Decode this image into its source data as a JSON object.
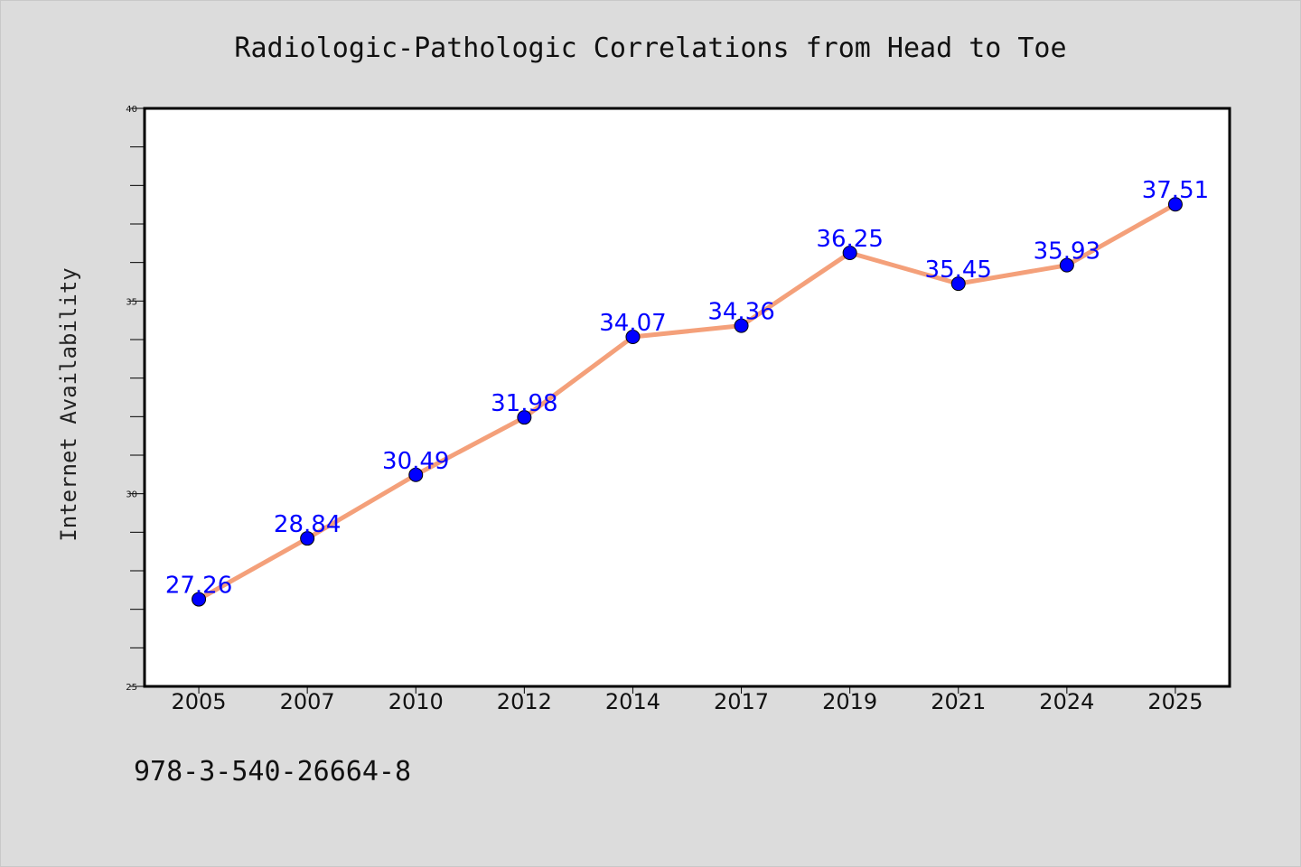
{
  "chart_data": {
    "type": "line",
    "title": "Radiologic-Pathologic Correlations from Head to Toe",
    "ylabel": "Internet Availability",
    "xlabel": "",
    "categories": [
      "2005",
      "2007",
      "2010",
      "2012",
      "2014",
      "2017",
      "2019",
      "2021",
      "2024",
      "2025"
    ],
    "series": [
      {
        "values": [
          27.26,
          28.84,
          30.49,
          31.98,
          34.07,
          34.36,
          36.25,
          35.45,
          35.93,
          37.51
        ],
        "labels": [
          "27.26",
          "28.84",
          "30.49",
          "31.98",
          "34.07",
          "34.36",
          "36.25",
          "35.45",
          "35.93",
          "37.51"
        ]
      }
    ],
    "ylim": [
      25,
      40
    ],
    "yticks": [
      "25",
      "30",
      "35",
      "40"
    ],
    "grid": false,
    "colors": {
      "line": "#f4a07a",
      "marker": "#0000ff",
      "label": "#0000ff",
      "background": "#dcdcdc",
      "plot_background": "#ffffff"
    }
  },
  "footer": {
    "isbn": "978-3-540-26664-8"
  }
}
